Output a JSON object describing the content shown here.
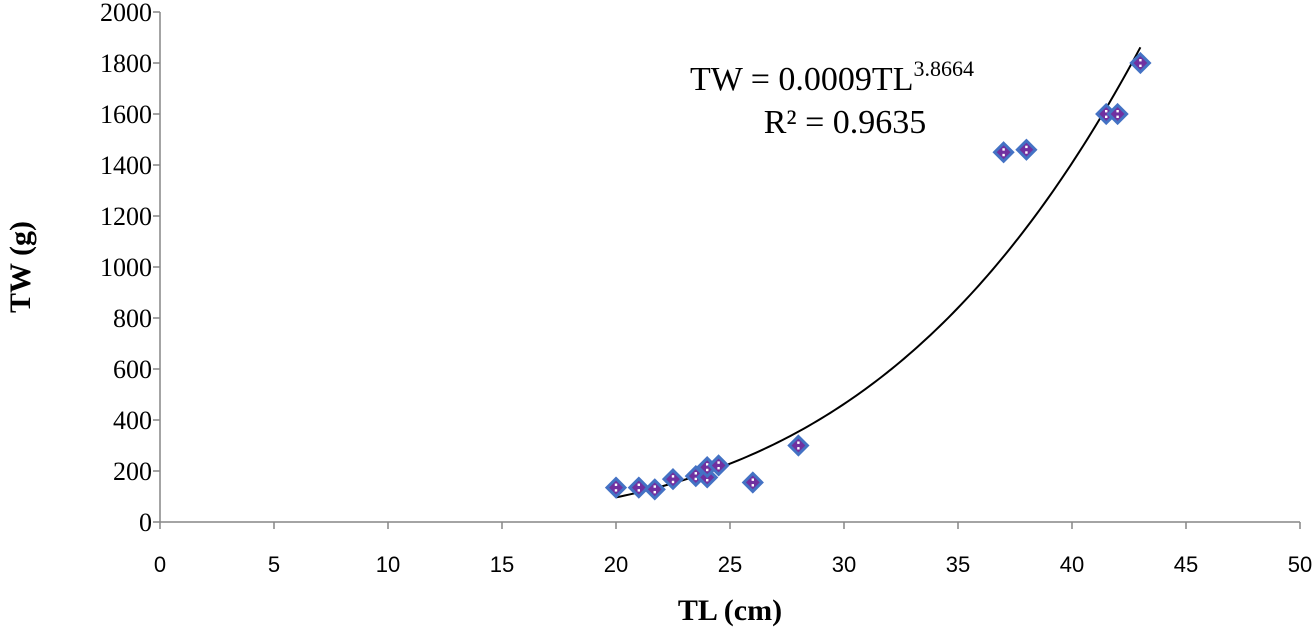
{
  "chart_data": {
    "type": "scatter",
    "xlabel": "TL (cm)",
    "ylabel": "TW (g)",
    "xlim": [
      0,
      50
    ],
    "ylim": [
      0,
      2000
    ],
    "x_ticks": [
      "0",
      "5",
      "10",
      "15",
      "20",
      "25",
      "30",
      "35",
      "40",
      "45",
      "50"
    ],
    "y_ticks": [
      "0",
      "200",
      "400",
      "600",
      "800",
      "1000",
      "1200",
      "1400",
      "1600",
      "1800",
      "2000"
    ],
    "grid": false,
    "legend": "none",
    "series": [
      {
        "points": [
          {
            "x": 20,
            "y": 135
          },
          {
            "x": 21,
            "y": 135
          },
          {
            "x": 21.7,
            "y": 128
          },
          {
            "x": 22.5,
            "y": 168
          },
          {
            "x": 23.5,
            "y": 180
          },
          {
            "x": 24,
            "y": 175
          },
          {
            "x": 24,
            "y": 215
          },
          {
            "x": 24.5,
            "y": 222
          },
          {
            "x": 26,
            "y": 155
          },
          {
            "x": 28,
            "y": 300
          },
          {
            "x": 37,
            "y": 1450
          },
          {
            "x": 38,
            "y": 1460
          },
          {
            "x": 41.5,
            "y": 1600
          },
          {
            "x": 42,
            "y": 1600
          },
          {
            "x": 43,
            "y": 1800
          }
        ],
        "marker": "diamond",
        "marker_fill": "#7030a0",
        "marker_edge": "#4472c4"
      }
    ],
    "trendline": {
      "type": "power",
      "a": 0.0009,
      "b": 3.8664,
      "x_range": [
        20,
        43
      ],
      "color": "#000000",
      "equation_base": "TW = 0.0009TL",
      "equation_exponent": "3.8664",
      "r_squared_label": "R² = 0.9635"
    }
  }
}
